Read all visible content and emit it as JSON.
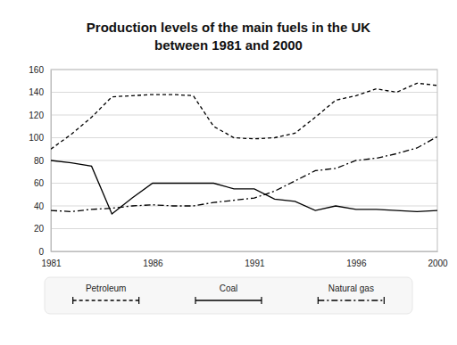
{
  "chart_data": {
    "type": "line",
    "title": "Production levels of the main fuels in the UK\nbetween 1981 and 2000",
    "x": [
      1981,
      1982,
      1983,
      1984,
      1985,
      1986,
      1987,
      1988,
      1989,
      1990,
      1991,
      1992,
      1993,
      1994,
      1995,
      1996,
      1997,
      1998,
      1999,
      2000
    ],
    "series": [
      {
        "name": "Petroleum",
        "color": "#000000",
        "line_style": "dashed",
        "values": [
          90,
          103,
          118,
          136,
          137,
          138,
          138,
          137,
          110,
          100,
          99,
          100,
          104,
          118,
          133,
          137,
          143,
          140,
          148,
          146
        ]
      },
      {
        "name": "Coal",
        "color": "#000000",
        "line_style": "solid",
        "values": [
          80,
          78,
          75,
          33,
          47,
          60,
          60,
          60,
          60,
          55,
          55,
          46,
          44,
          36,
          40,
          37,
          37,
          36,
          35,
          36
        ]
      },
      {
        "name": "Natural gas",
        "color": "#000000",
        "line_style": "dashdot",
        "values": [
          36,
          35,
          37,
          38,
          40,
          41,
          40,
          40,
          43,
          45,
          47,
          53,
          62,
          71,
          73,
          80,
          82,
          86,
          91,
          101
        ]
      }
    ],
    "xlim": [
      1981,
      2000
    ],
    "xticks": [
      1981,
      1986,
      1991,
      1996,
      2000
    ],
    "ylim": [
      0,
      160
    ],
    "yticks": [
      0,
      20,
      40,
      60,
      80,
      100,
      120,
      140,
      160
    ],
    "grid": true,
    "legend": "bottom"
  }
}
